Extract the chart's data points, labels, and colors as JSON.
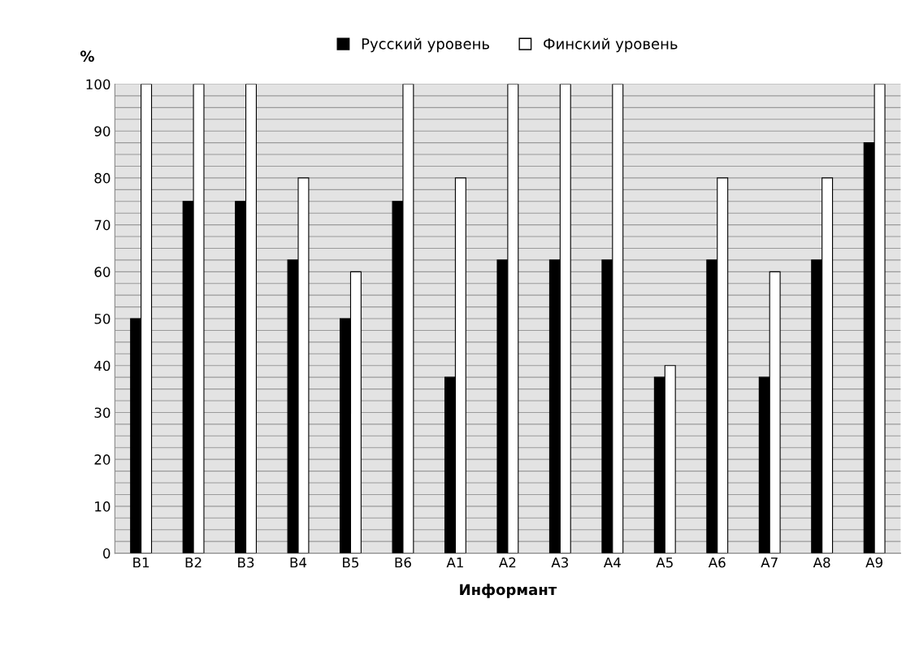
{
  "chart_data": {
    "type": "bar",
    "ylabel": "%",
    "xlabel": "Информант",
    "categories": [
      "B1",
      "B2",
      "B3",
      "B4",
      "B5",
      "B6",
      "A1",
      "A2",
      "A3",
      "A4",
      "A5",
      "A6",
      "A7",
      "A8",
      "A9"
    ],
    "series": [
      {
        "name": "Русский уровень",
        "color": "#000000",
        "values": [
          50,
          75,
          75,
          62.5,
          50,
          75,
          37.5,
          62.5,
          62.5,
          62.5,
          37.5,
          62.5,
          37.5,
          62.5,
          87.5
        ]
      },
      {
        "name": "Финский уровень",
        "color": "#ffffff",
        "values": [
          100,
          100,
          100,
          80,
          60,
          100,
          80,
          100,
          100,
          100,
          40,
          80,
          60,
          80,
          100
        ]
      }
    ],
    "ylim": [
      0,
      100
    ],
    "yticks": [
      0,
      {
        "value": 2.5,
        "label": null
      },
      {
        "value": 5,
        "label": null
      },
      {
        "value": 7.5,
        "label": null
      },
      10,
      {
        "value": 12.5,
        "label": null
      },
      {
        "value": 15,
        "label": null
      },
      {
        "value": 17.5,
        "label": null
      },
      20,
      {
        "value": 22.5,
        "label": null
      },
      {
        "value": 25,
        "label": null
      },
      {
        "value": 27.5,
        "label": null
      },
      30,
      {
        "value": 32.5,
        "label": null
      },
      {
        "value": 35,
        "label": null
      },
      {
        "value": 37.5,
        "label": null
      },
      40,
      {
        "value": 42.5,
        "label": null
      },
      {
        "value": 45,
        "label": null
      },
      {
        "value": 47.5,
        "label": null
      },
      50,
      {
        "value": 52.5,
        "label": null
      },
      {
        "value": 55,
        "label": null
      },
      {
        "value": 57.5,
        "label": null
      },
      60,
      {
        "value": 62.5,
        "label": null
      },
      {
        "value": 65,
        "label": null
      },
      {
        "value": 67.5,
        "label": null
      },
      70,
      {
        "value": 72.5,
        "label": null
      },
      {
        "value": 75,
        "label": null
      },
      {
        "value": 77.5,
        "label": null
      },
      80,
      {
        "value": 82.5,
        "label": null
      },
      {
        "value": 85,
        "label": null
      },
      {
        "value": 87.5,
        "label": null
      },
      90,
      {
        "value": 92.5,
        "label": null
      },
      {
        "value": 95,
        "label": null
      },
      {
        "value": 97.5,
        "label": null
      },
      100
    ],
    "grid": "y",
    "legend": "top"
  }
}
